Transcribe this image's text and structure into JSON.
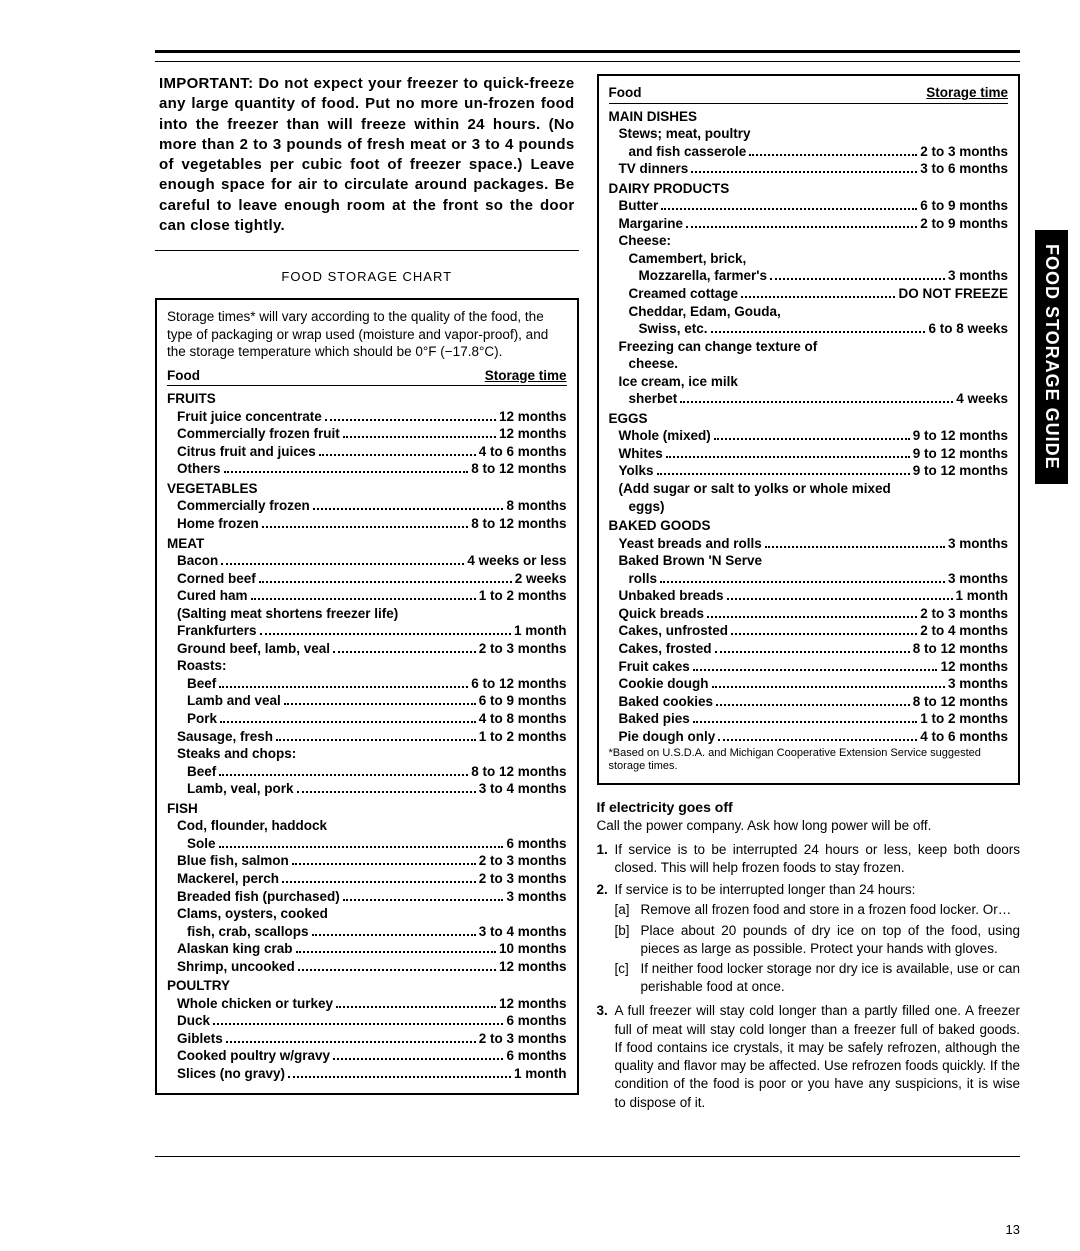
{
  "important": "IMPORTANT: Do not expect your freezer to quick-freeze any large quantity of food. Put no more un-frozen food into the freezer than will freeze within 24 hours. (No more than 2 to 3 pounds of fresh meat or 3 to 4 pounds of vegetables per cubic foot of freezer space.) Leave enough space for air to circulate around packages. Be careful to leave enough room at the front so the door can close tightly.",
  "chart": {
    "title": "FOOD STORAGE CHART",
    "intro": "Storage times* will vary according to the quality of the food, the type of packaging or wrap used (moisture and vapor-proof), and the storage temperature which should be 0°F (−17.8°C).",
    "head_food": "Food",
    "head_time": "Storage time",
    "footnote": "*Based on U.S.D.A. and Michigan Cooperative Extension Service suggested storage times."
  },
  "left_sections": [
    {
      "cat": "FRUITS",
      "items": [
        {
          "label": "Fruit juice concentrate",
          "val": "12 months",
          "ind": 1
        },
        {
          "label": "Commercially frozen fruit",
          "val": "12 months",
          "ind": 1
        },
        {
          "label": "Citrus fruit and juices",
          "val": "4 to 6 months",
          "ind": 1
        },
        {
          "label": "Others",
          "val": "8 to 12 months",
          "ind": 1
        }
      ]
    },
    {
      "cat": "VEGETABLES",
      "items": [
        {
          "label": "Commercially frozen",
          "val": "8 months",
          "ind": 1
        },
        {
          "label": "Home frozen",
          "val": "8 to 12 months",
          "ind": 1
        }
      ]
    },
    {
      "cat": "MEAT",
      "items": [
        {
          "label": "Bacon",
          "val": "4 weeks or less",
          "ind": 1
        },
        {
          "label": "Corned beef",
          "val": "2 weeks",
          "ind": 1
        },
        {
          "label": "Cured ham",
          "val": "1 to 2 months",
          "ind": 1
        },
        {
          "note": "(Salting meat shortens freezer life)",
          "ind": 1
        },
        {
          "label": "Frankfurters",
          "val": "1 month",
          "ind": 1
        },
        {
          "label": "Ground beef, lamb, veal",
          "val": "2 to 3 months",
          "ind": 1
        },
        {
          "note": "Roasts:",
          "ind": 1
        },
        {
          "label": "Beef",
          "val": "6 to 12 months",
          "ind": 2
        },
        {
          "label": "Lamb and veal",
          "val": "6 to 9 months",
          "ind": 2
        },
        {
          "label": "Pork",
          "val": "4 to 8 months",
          "ind": 2
        },
        {
          "label": "Sausage, fresh",
          "val": "1 to 2 months",
          "ind": 1
        },
        {
          "note": "Steaks and chops:",
          "ind": 1
        },
        {
          "label": "Beef",
          "val": "8 to 12 months",
          "ind": 2
        },
        {
          "label": "Lamb, veal, pork",
          "val": "3 to 4 months",
          "ind": 2
        }
      ]
    },
    {
      "cat": "FISH",
      "items": [
        {
          "note": "Cod, flounder, haddock",
          "ind": 1
        },
        {
          "label": "Sole",
          "val": "6 months",
          "ind": 2
        },
        {
          "label": "Blue fish, salmon",
          "val": "2 to 3 months",
          "ind": 1
        },
        {
          "label": "Mackerel, perch",
          "val": "2 to 3 months",
          "ind": 1
        },
        {
          "label": "Breaded fish (purchased)",
          "val": "3 months",
          "ind": 1
        },
        {
          "note": "Clams, oysters, cooked",
          "ind": 1
        },
        {
          "label": "fish, crab, scallops",
          "val": "3 to 4 months",
          "ind": 2
        },
        {
          "label": "Alaskan king crab",
          "val": "10 months",
          "ind": 1
        },
        {
          "label": "Shrimp, uncooked",
          "val": "12 months",
          "ind": 1
        }
      ]
    },
    {
      "cat": "POULTRY",
      "items": [
        {
          "label": "Whole chicken or turkey",
          "val": "12 months",
          "ind": 1
        },
        {
          "label": "Duck",
          "val": "6 months",
          "ind": 1
        },
        {
          "label": "Giblets",
          "val": "2 to 3 months",
          "ind": 1
        },
        {
          "label": "Cooked poultry w/gravy",
          "val": "6 months",
          "ind": 1
        },
        {
          "label": "Slices (no gravy)",
          "val": "1 month",
          "ind": 1
        }
      ]
    }
  ],
  "right_sections": [
    {
      "cat": "MAIN DISHES",
      "items": [
        {
          "note": "Stews; meat, poultry",
          "ind": 1
        },
        {
          "label": "and fish casserole",
          "val": "2 to 3 months",
          "ind": 2
        },
        {
          "label": "TV dinners",
          "val": "3 to 6 months",
          "ind": 1
        }
      ]
    },
    {
      "cat": "DAIRY PRODUCTS",
      "items": [
        {
          "label": "Butter",
          "val": "6 to 9 months",
          "ind": 1
        },
        {
          "label": "Margarine",
          "val": "2 to 9 months",
          "ind": 1
        },
        {
          "note": "Cheese:",
          "ind": 1
        },
        {
          "note": "Camembert, brick,",
          "ind": 2
        },
        {
          "label": "Mozzarella, farmer's",
          "val": "3 months",
          "ind": 3
        },
        {
          "label": "Creamed cottage",
          "val": "DO NOT FREEZE",
          "ind": 2
        },
        {
          "note": "Cheddar, Edam, Gouda,",
          "ind": 2
        },
        {
          "label": "Swiss, etc.",
          "val": "6 to 8 weeks",
          "ind": 3
        },
        {
          "note": "Freezing can change texture of",
          "ind": 1
        },
        {
          "note": "cheese.",
          "ind": 2
        },
        {
          "note": "Ice cream, ice milk",
          "ind": 1
        },
        {
          "label": "sherbet",
          "val": "4 weeks",
          "ind": 2
        }
      ]
    },
    {
      "cat": "EGGS",
      "items": [
        {
          "label": "Whole (mixed)",
          "val": "9 to 12 months",
          "ind": 1
        },
        {
          "label": "Whites",
          "val": "9 to 12 months",
          "ind": 1
        },
        {
          "label": "Yolks",
          "val": "9 to 12 months",
          "ind": 1
        },
        {
          "note": "(Add sugar or salt to yolks or whole mixed",
          "ind": 1
        },
        {
          "note": "eggs)",
          "ind": 2
        }
      ]
    },
    {
      "cat": "BAKED GOODS",
      "items": [
        {
          "label": "Yeast breads and rolls",
          "val": "3 months",
          "ind": 1
        },
        {
          "note": "Baked Brown 'N Serve",
          "ind": 1
        },
        {
          "label": "rolls",
          "val": "3 months",
          "ind": 2
        },
        {
          "label": "Unbaked breads",
          "val": "1 month",
          "ind": 1
        },
        {
          "label": "Quick breads",
          "val": "2 to 3 months",
          "ind": 1
        },
        {
          "label": "Cakes, unfrosted",
          "val": "2 to 4 months",
          "ind": 1
        },
        {
          "label": "Cakes, frosted",
          "val": "8 to 12 months",
          "ind": 1
        },
        {
          "label": "Fruit cakes",
          "val": "12 months",
          "ind": 1
        },
        {
          "label": "Cookie dough",
          "val": "3 months",
          "ind": 1
        },
        {
          "label": "Baked cookies",
          "val": "8 to 12 months",
          "ind": 1
        },
        {
          "label": "Baked pies",
          "val": "1 to 2 months",
          "ind": 1
        },
        {
          "label": "Pie dough only",
          "val": "4 to 6 months",
          "ind": 1
        }
      ]
    }
  ],
  "electricity": {
    "title": "If electricity goes off",
    "intro": "Call the power company. Ask how long power will be off.",
    "items": [
      {
        "num": "1.",
        "text": "If service is to be interrupted 24 hours or less, keep both doors closed. This will help frozen foods to stay frozen."
      },
      {
        "num": "2.",
        "text": "If service is to be interrupted longer than 24 hours:",
        "sub": [
          {
            "let": "[a]",
            "txt": "Remove all frozen food and store in a frozen food locker. Or…"
          },
          {
            "let": "[b]",
            "txt": "Place about 20 pounds of dry ice on top of the food, using pieces as large as possible. Protect your hands with gloves."
          },
          {
            "let": "[c]",
            "txt": "If neither food locker storage nor dry ice is available, use or can perishable food at once."
          }
        ]
      },
      {
        "num": "3.",
        "text": "A full freezer will stay cold longer than a partly filled one. A freezer full of meat will stay cold longer than a freezer full of baked goods. If food contains ice crystals, it may be safely refrozen, although the quality and flavor may be affected. Use refrozen foods quickly. If the condition of the food is poor or you have any suspicions, it is wise to dispose of it."
      }
    ]
  },
  "side_tab": "FOOD STORAGE GUIDE",
  "page_number": "13"
}
